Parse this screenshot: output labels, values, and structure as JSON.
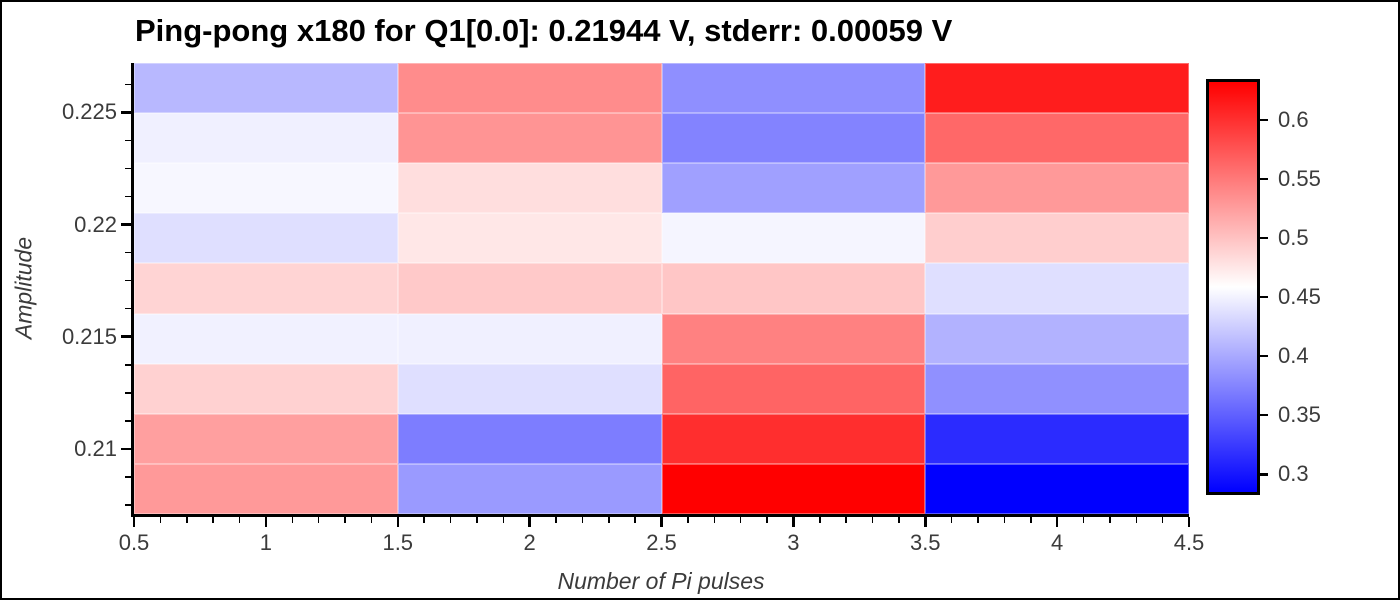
{
  "chart_data": {
    "type": "heatmap",
    "title": "Ping-pong x180 for Q1[0.0]: 0.21944 V, stderr: 0.00059 V",
    "xlabel": "Number of Pi pulses",
    "ylabel": "Amplitude",
    "colormap": "bwr",
    "colormap_endpoints": {
      "low": "#0000ff",
      "mid": "#ffffff",
      "high": "#ff0000"
    },
    "vmin": 0.285,
    "vmax": 0.632,
    "xlim": [
      0.5,
      4.5
    ],
    "ylim": [
      0.2071,
      0.2272
    ],
    "x_centers": [
      1,
      2,
      3,
      4
    ],
    "y_centers_top_to_bottom": [
      0.2261,
      0.2239,
      0.2216,
      0.2194,
      0.2172,
      0.2149,
      0.2127,
      0.2105,
      0.2082
    ],
    "values_rows_top_to_bottom": [
      [
        0.41,
        0.537,
        0.382,
        0.612
      ],
      [
        0.448,
        0.531,
        0.374,
        0.561
      ],
      [
        0.453,
        0.481,
        0.394,
        0.528
      ],
      [
        0.437,
        0.475,
        0.452,
        0.492
      ],
      [
        0.488,
        0.495,
        0.497,
        0.437
      ],
      [
        0.449,
        0.448,
        0.544,
        0.406
      ],
      [
        0.49,
        0.437,
        0.564,
        0.383
      ],
      [
        0.524,
        0.37,
        0.601,
        0.314
      ],
      [
        0.528,
        0.39,
        0.632,
        0.285
      ]
    ],
    "x_axis": {
      "tick_values": [
        0.5,
        1,
        1.5,
        2,
        2.5,
        3,
        3.5,
        4,
        4.5
      ],
      "tick_labels": [
        "0.5",
        "1",
        "1.5",
        "2",
        "2.5",
        "3",
        "3.5",
        "4",
        "4.5"
      ],
      "minor_step": 0.1
    },
    "y_axis": {
      "tick_values": [
        0.225,
        0.22,
        0.215,
        0.21
      ],
      "tick_labels": [
        "0.225",
        "0.22",
        "0.215",
        "0.21"
      ],
      "minor_step": 0.00125
    },
    "colorbar": {
      "location": "right",
      "tick_values": [
        0.6,
        0.55,
        0.5,
        0.45,
        0.4,
        0.35,
        0.3
      ],
      "tick_labels": [
        "0.6",
        "0.55",
        "0.5",
        "0.45",
        "0.4",
        "0.35",
        "0.3"
      ]
    },
    "grid": false,
    "legend": false
  },
  "style_colors": {
    "background": "#ffffff",
    "title_text": "#000000",
    "tick_label_text": "#3b3b3b",
    "axis_title_text": "#3b3b3b",
    "spine": "#000000",
    "figure_border": "#000000"
  }
}
